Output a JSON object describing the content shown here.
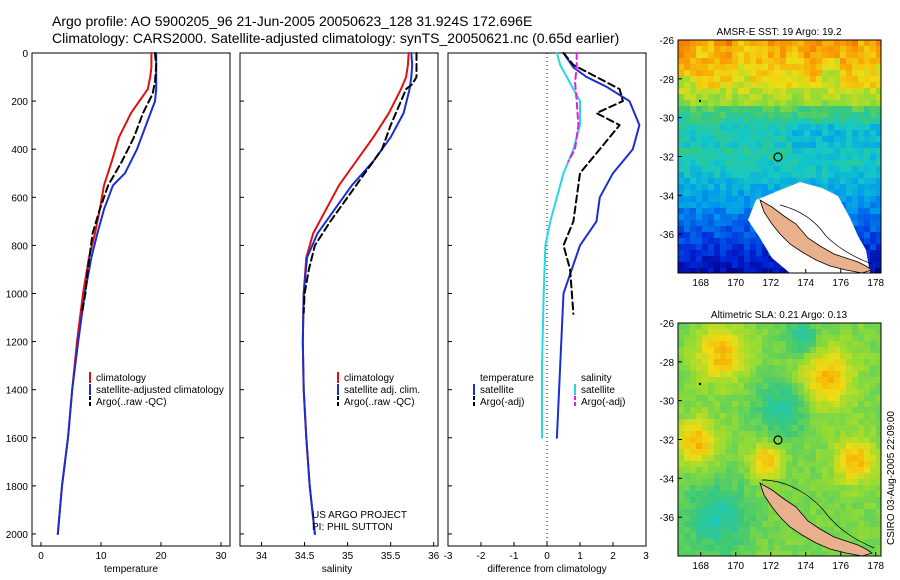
{
  "header": {
    "line1": "Argo profile: AO 5900205_96 21-Jun-2005 20050623_128 31.924S 172.696E",
    "line2": "Climatology: CARS2000. Satellite-adjusted climatology: synTS_20050621.nc (0.65d earlier)"
  },
  "credit": "CSIRO 03-Aug-2005 22:09:00",
  "colors": {
    "climatology": "#e01010",
    "satellite": "#1a2fd0",
    "argo": "#000000",
    "salinity_sat": "#28d8e0",
    "salinity_argo": "#e020e0"
  },
  "chart_data": [
    {
      "type": "line",
      "id": "temperature",
      "xlabel": "temperature",
      "ylabel": "",
      "xlim": [
        -1.5,
        31.5
      ],
      "ylim": [
        0,
        2050
      ],
      "y_inverted": true,
      "x_ticks": [
        0,
        10,
        20,
        30
      ],
      "y_ticks": [
        0,
        200,
        400,
        600,
        800,
        1000,
        1200,
        1400,
        1600,
        1800,
        2000
      ],
      "legend": {
        "position": "lower-right",
        "entries": [
          "climatology",
          "satellite-adjusted climatology",
          "Argo(..raw -QC)"
        ]
      },
      "series": [
        {
          "name": "climatology",
          "color_key": "climatology",
          "dash": "none",
          "x": [
            18.4,
            18.4,
            18.2,
            17.8,
            15.0,
            13.0,
            11.8,
            10.5,
            9.8,
            9.0,
            8.0,
            7.0,
            6.0,
            5.2,
            4.5,
            3.5,
            2.8
          ],
          "y": [
            0,
            60,
            100,
            150,
            250,
            350,
            450,
            550,
            650,
            750,
            850,
            1000,
            1200,
            1400,
            1600,
            1800,
            2000
          ]
        },
        {
          "name": "satellite-adjusted climatology",
          "color_key": "satellite",
          "dash": "none",
          "x": [
            19.2,
            19.2,
            19.2,
            19.0,
            17.5,
            16.0,
            14.0,
            12.0,
            10.5,
            9.4,
            8.4,
            7.3,
            6.2,
            5.2,
            4.5,
            3.5,
            2.8
          ],
          "y": [
            0,
            80,
            150,
            200,
            300,
            400,
            500,
            550,
            650,
            750,
            850,
            1000,
            1200,
            1400,
            1600,
            1800,
            2000
          ]
        },
        {
          "name": "Argo(..raw -QC)",
          "color_key": "argo",
          "dash": "7 4",
          "x": [
            19.0,
            19.2,
            19.0,
            18.6,
            18.0,
            17.0,
            15.5,
            13.5,
            11.2,
            9.8,
            8.6,
            7.8,
            7.4,
            6.8
          ],
          "y": [
            0,
            50,
            120,
            170,
            200,
            250,
            350,
            450,
            550,
            650,
            750,
            900,
            1000,
            1085
          ]
        }
      ]
    },
    {
      "type": "line",
      "id": "salinity",
      "xlabel": "salinity",
      "xlim": [
        33.75,
        36.05
      ],
      "ylim": [
        0,
        2050
      ],
      "y_inverted": true,
      "x_ticks": [
        34,
        34.5,
        35,
        35.5,
        36
      ],
      "legend": {
        "position": "lower-right",
        "entries": [
          "climatology",
          "satellite adj. clim.",
          "Argo(..raw -QC)"
        ]
      },
      "annotation": [
        "US ARGO PROJECT",
        "PI: PHIL SUTTON"
      ],
      "series": [
        {
          "name": "climatology",
          "color_key": "climatology",
          "dash": "none",
          "x": [
            35.71,
            35.7,
            35.68,
            35.62,
            35.48,
            35.3,
            35.1,
            34.9,
            34.75,
            34.6,
            34.52,
            34.49,
            34.48,
            34.49,
            34.52,
            34.56,
            34.62
          ],
          "y": [
            0,
            50,
            100,
            150,
            250,
            350,
            450,
            550,
            650,
            750,
            850,
            1000,
            1200,
            1400,
            1600,
            1800,
            2000
          ]
        },
        {
          "name": "satellite adj. clim.",
          "color_key": "satellite",
          "dash": "none",
          "x": [
            35.74,
            35.75,
            35.74,
            35.72,
            35.65,
            35.5,
            35.3,
            35.05,
            34.85,
            34.65,
            34.53,
            34.49,
            34.48,
            34.49,
            34.52,
            34.56,
            34.62
          ],
          "y": [
            0,
            50,
            100,
            150,
            250,
            350,
            450,
            550,
            650,
            750,
            850,
            1000,
            1200,
            1400,
            1600,
            1800,
            2000
          ]
        },
        {
          "name": "Argo(..raw -QC)",
          "color_key": "argo",
          "dash": "7 4",
          "x": [
            35.8,
            35.8,
            35.8,
            35.75,
            35.68,
            35.62,
            35.5,
            35.4,
            35.2,
            35.0,
            34.8,
            34.62,
            34.55,
            34.5,
            34.49
          ],
          "y": [
            0,
            50,
            100,
            130,
            150,
            200,
            300,
            400,
            500,
            600,
            700,
            800,
            900,
            1000,
            1080
          ]
        }
      ]
    },
    {
      "type": "line",
      "id": "difference",
      "xlabel": "difference from climatology",
      "xlim": [
        -3,
        3
      ],
      "ylim": [
        0,
        2050
      ],
      "y_inverted": true,
      "x_ticks": [
        -3,
        -2,
        -1,
        0,
        1,
        2,
        3
      ],
      "legend": {
        "position": "lower",
        "entries": [
          "temperature",
          "satellite",
          "Argo(-adj)",
          "salinity",
          "satellite",
          "Argo(-adj)"
        ]
      },
      "series": [
        {
          "name": "temperature satellite",
          "color_key": "satellite",
          "dash": "none",
          "x": [
            0.5,
            0.8,
            1.2,
            1.8,
            2.5,
            2.8,
            2.6,
            2.0,
            1.6,
            1.5,
            1.0,
            0.5,
            0.4,
            0.3
          ],
          "y": [
            0,
            60,
            100,
            140,
            200,
            300,
            400,
            500,
            600,
            700,
            800,
            1000,
            1300,
            1600
          ]
        },
        {
          "name": "temperature Argo(-adj)",
          "color_key": "argo",
          "dash": "7 4",
          "x": [
            0.5,
            0.8,
            1.5,
            2.2,
            2.3,
            1.5,
            2.2,
            1.6,
            1.0,
            0.9,
            0.8,
            0.5,
            0.7,
            0.8
          ],
          "y": [
            0,
            50,
            100,
            150,
            200,
            250,
            300,
            400,
            500,
            600,
            700,
            800,
            900,
            1085
          ]
        },
        {
          "name": "salinity satellite",
          "color_key": "salinity_sat",
          "dash": "none",
          "x": [
            0.3,
            0.4,
            0.6,
            0.8,
            1.0,
            1.0,
            0.8,
            0.5,
            0.3,
            0.1,
            -0.05,
            -0.1,
            -0.15,
            -0.15
          ],
          "y": [
            0,
            50,
            100,
            150,
            200,
            300,
            400,
            500,
            600,
            700,
            800,
            1000,
            1300,
            1600
          ]
        },
        {
          "name": "salinity Argo(-adj)",
          "color_key": "salinity_argo",
          "dash": "6 4",
          "x": [
            0.9,
            0.9,
            0.85,
            0.9,
            0.95,
            0.85,
            0.65
          ],
          "y": [
            0,
            60,
            120,
            200,
            300,
            400,
            450
          ]
        }
      ]
    },
    {
      "type": "heatmap",
      "id": "sst-map",
      "title": "AMSR-E SST: 19 Argo: 19.2",
      "xlim": [
        166.7,
        178.3
      ],
      "ylim": [
        -38,
        -26
      ],
      "x_ticks": [
        168,
        170,
        172,
        174,
        176,
        178
      ],
      "y_ticks": [
        -26,
        -28,
        -30,
        -32,
        -34,
        -36
      ],
      "argo_position": [
        172.696,
        -31.924
      ]
    },
    {
      "type": "heatmap",
      "id": "sla-map",
      "title": "Altimetric SLA: 0.21 Argo: 0.13",
      "xlim": [
        166.7,
        178.3
      ],
      "ylim": [
        -38,
        -26
      ],
      "x_ticks": [
        168,
        170,
        172,
        174,
        176,
        178
      ],
      "y_ticks": [
        -26,
        -28,
        -30,
        -32,
        -34,
        -36
      ],
      "argo_position": [
        172.696,
        -31.924
      ]
    }
  ]
}
